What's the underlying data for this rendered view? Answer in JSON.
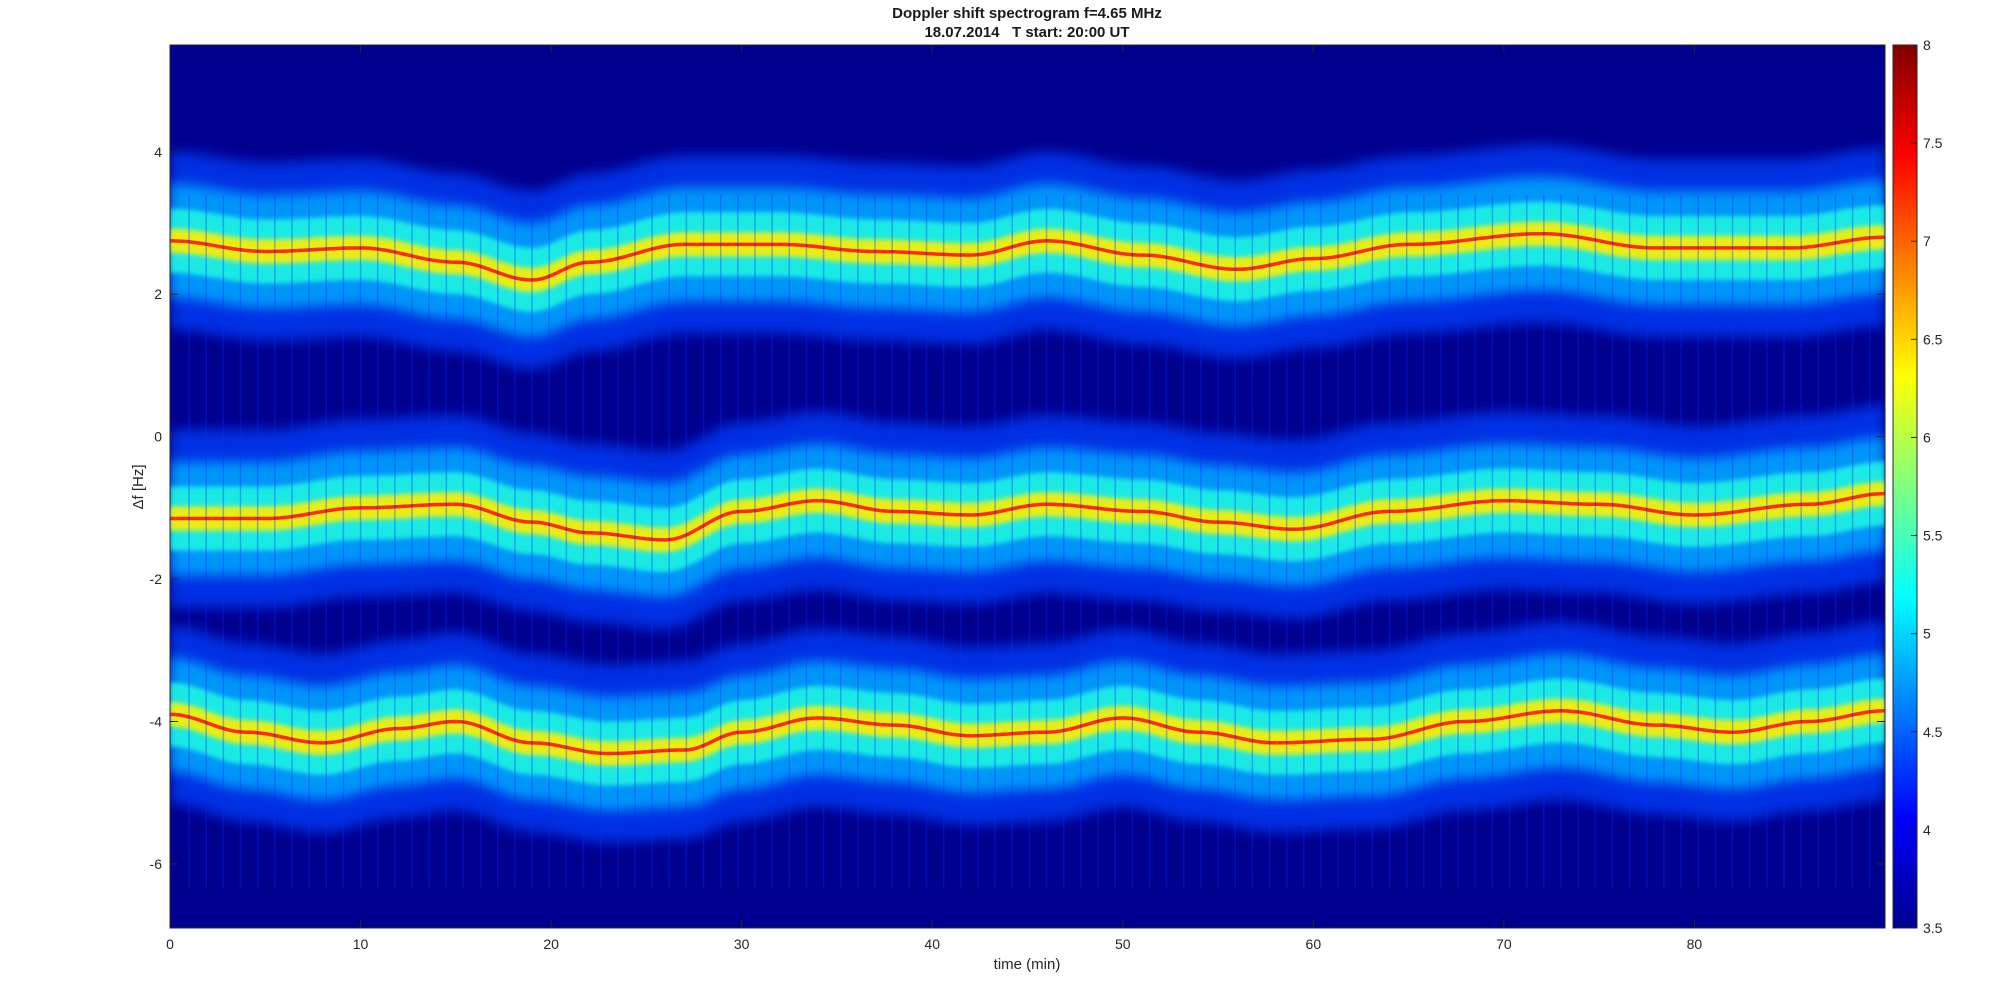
{
  "chart_data": {
    "type": "heatmap",
    "title": "Doppler shift spectrogram f=4.65 MHz",
    "subtitle": "18.07.2014   T start: 20:00 UT",
    "xlabel": "time (min)",
    "ylabel": "Δf [Hz]",
    "xlim": [
      0,
      90
    ],
    "ylim": [
      -6.9,
      5.5
    ],
    "xticks": [
      0,
      10,
      20,
      30,
      40,
      50,
      60,
      70,
      80
    ],
    "yticks": [
      -6,
      -4,
      -2,
      0,
      2,
      4
    ],
    "colorbar": {
      "colormap": "jet",
      "clim": [
        3.5,
        8
      ],
      "ticks": [
        3.5,
        4,
        4.5,
        5,
        5.5,
        6,
        6.5,
        7,
        7.5,
        8
      ]
    },
    "traces": [
      {
        "time": [
          0,
          5,
          10,
          15,
          19,
          22,
          27,
          32,
          37,
          42,
          46,
          51,
          56,
          60,
          65,
          72,
          78,
          85,
          90
        ],
        "df": [
          2.75,
          2.6,
          2.65,
          2.45,
          2.2,
          2.45,
          2.7,
          2.7,
          2.6,
          2.55,
          2.75,
          2.55,
          2.35,
          2.5,
          2.7,
          2.85,
          2.65,
          2.65,
          2.8
        ]
      },
      {
        "time": [
          0,
          5,
          10,
          15,
          19,
          22,
          26,
          30,
          34,
          38,
          42,
          46,
          51,
          55,
          59,
          64,
          70,
          75,
          80,
          86,
          90
        ],
        "df": [
          -1.15,
          -1.15,
          -1.0,
          -0.95,
          -1.2,
          -1.35,
          -1.45,
          -1.05,
          -0.9,
          -1.05,
          -1.1,
          -0.95,
          -1.05,
          -1.2,
          -1.3,
          -1.05,
          -0.9,
          -0.95,
          -1.1,
          -0.95,
          -0.8
        ]
      },
      {
        "time": [
          0,
          4,
          8,
          12,
          15,
          19,
          23,
          27,
          30,
          34,
          38,
          42,
          46,
          50,
          54,
          58,
          63,
          68,
          73,
          78,
          82,
          86,
          90
        ],
        "df": [
          -3.9,
          -4.15,
          -4.3,
          -4.1,
          -4.0,
          -4.3,
          -4.45,
          -4.4,
          -4.15,
          -3.95,
          -4.05,
          -4.2,
          -4.15,
          -3.95,
          -4.15,
          -4.3,
          -4.25,
          -4.0,
          -3.85,
          -4.05,
          -4.15,
          -4.0,
          -3.85
        ]
      }
    ]
  }
}
